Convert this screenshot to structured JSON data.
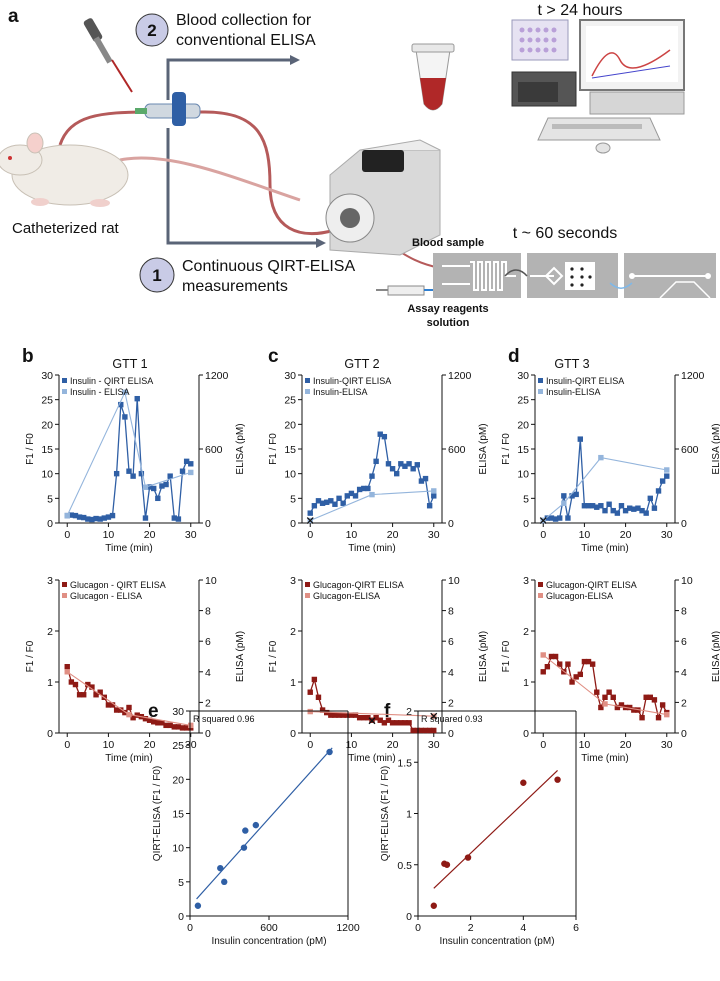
{
  "panel_a": {
    "label": "a",
    "step2_number": "2",
    "step2_text_line1": "Blood collection for",
    "step2_text_line2": "conventional ELISA",
    "step1_number": "1",
    "step1_text_line1": "Continuous QIRT-ELISA",
    "step1_text_line2": "measurements",
    "rat_label": "Catheterized rat",
    "time_slow": "t > 24 hours",
    "time_fast": "t ~ 60 seconds",
    "blood_sample": "Blood sample",
    "assay_line1": "Assay reagents",
    "assay_line2": "solution",
    "colors": {
      "step_circle": "#c9cbe6",
      "tube_red": "#b02828",
      "pump_gray": "#d9d9d9",
      "chip_bg": "#b3b3b3"
    }
  },
  "colors": {
    "insulin_qirt": "#2f5fa5",
    "insulin_elisa": "#94b5dc",
    "glucagon_qirt": "#8e1a15",
    "glucagon_elisa": "#e08f84"
  },
  "panel_labels": {
    "b": "b",
    "c": "c",
    "d": "d",
    "e": "e",
    "f": "f"
  },
  "chart_data": [
    {
      "id": "b_top",
      "type": "line",
      "title": "GTT 1",
      "xlabel": "Time (min)",
      "ylabel": "F1 / F0",
      "y2label": "ELISA (pM)",
      "xlim": [
        -2,
        32
      ],
      "ylim": [
        0,
        30
      ],
      "y2lim": [
        0,
        1200
      ],
      "xticks": [
        0,
        10,
        20,
        30
      ],
      "yticks": [
        0,
        5,
        10,
        15,
        20,
        25,
        30
      ],
      "y2ticks": [
        0,
        600,
        1200
      ],
      "series": [
        {
          "name": "Insulin - QIRT ELISA",
          "axis": "left",
          "color": "#2f5fa5",
          "x": [
            0,
            1,
            2,
            3,
            4,
            5,
            6,
            7,
            8,
            9,
            10,
            11,
            12,
            13,
            14,
            15,
            16,
            17,
            18,
            19,
            20,
            21,
            22,
            23,
            24,
            25,
            26,
            27,
            28,
            29,
            30
          ],
          "y": [
            1.5,
            1.6,
            1.5,
            1.2,
            1.1,
            0.8,
            0.7,
            0.9,
            0.8,
            1.0,
            1.2,
            1.5,
            10.0,
            24.0,
            21.5,
            10.5,
            9.5,
            25.2,
            10.0,
            1.0,
            7.3,
            7.0,
            5.0,
            7.5,
            7.8,
            9.5,
            1.0,
            0.8,
            10.5,
            12.5,
            12.0
          ]
        },
        {
          "name": "Insulin - ELISA",
          "axis": "right",
          "color": "#94b5dc",
          "x": [
            0,
            14,
            19,
            30
          ],
          "y": [
            60,
            1060,
            290,
            410
          ]
        }
      ]
    },
    {
      "id": "c_top",
      "type": "line",
      "title": "GTT 2",
      "xlabel": "Time (min)",
      "ylabel": "F1 / F0",
      "y2label": "ELISA (pM)",
      "xlim": [
        -2,
        32
      ],
      "ylim": [
        0,
        30
      ],
      "y2lim": [
        0,
        1200
      ],
      "xticks": [
        0,
        10,
        20,
        30
      ],
      "yticks": [
        0,
        5,
        10,
        15,
        20,
        25,
        30
      ],
      "y2ticks": [
        0,
        600,
        1200
      ],
      "series": [
        {
          "name": "Insulin-QIRT ELISA",
          "axis": "left",
          "color": "#2f5fa5",
          "x": [
            0,
            1,
            2,
            3,
            4,
            5,
            6,
            7,
            8,
            9,
            10,
            11,
            12,
            13,
            14,
            15,
            16,
            17,
            18,
            19,
            20,
            21,
            22,
            23,
            24,
            25,
            26,
            27,
            28,
            29,
            30
          ],
          "y": [
            2.0,
            3.5,
            4.5,
            4.0,
            4.2,
            4.5,
            3.8,
            5.0,
            4.0,
            5.5,
            6.0,
            5.5,
            6.8,
            7.0,
            7.0,
            9.5,
            12.5,
            18.0,
            17.5,
            12.0,
            11.0,
            10.0,
            12.0,
            11.5,
            12.0,
            11.0,
            11.8,
            8.5,
            9.0,
            3.5,
            5.5
          ]
        },
        {
          "name": "Insulin-ELISA",
          "axis": "right",
          "color": "#94b5dc",
          "x": [
            0,
            15,
            30
          ],
          "y": [
            20,
            230,
            260
          ]
        }
      ],
      "markers_x": [
        {
          "x": 0,
          "y2": 20
        }
      ]
    },
    {
      "id": "d_top",
      "type": "line",
      "title": "GTT 3",
      "xlabel": "Time (min)",
      "ylabel": "F1 / F0",
      "y2label": "ELISA (pM)",
      "xlim": [
        -2,
        32
      ],
      "ylim": [
        0,
        30
      ],
      "y2lim": [
        0,
        1200
      ],
      "xticks": [
        0,
        10,
        20,
        30
      ],
      "yticks": [
        0,
        5,
        10,
        15,
        20,
        25,
        30
      ],
      "y2ticks": [
        0,
        600,
        1200
      ],
      "series": [
        {
          "name": "Insulin-QIRT ELISA",
          "axis": "left",
          "color": "#2f5fa5",
          "x": [
            0,
            1,
            2,
            3,
            4,
            5,
            6,
            7,
            8,
            9,
            10,
            11,
            12,
            13,
            14,
            15,
            16,
            17,
            18,
            19,
            20,
            21,
            22,
            23,
            24,
            25,
            26,
            27,
            28,
            29,
            30
          ],
          "y": [
            0.5,
            1.0,
            1.0,
            0.8,
            1.0,
            5.5,
            1.0,
            5.5,
            5.8,
            17.0,
            3.5,
            3.5,
            3.5,
            3.2,
            3.5,
            2.5,
            3.8,
            2.5,
            2.0,
            3.5,
            2.5,
            3.0,
            2.8,
            3.0,
            2.5,
            2.0,
            5.0,
            3.0,
            6.5,
            8.5,
            9.5
          ]
        },
        {
          "name": "Insulin-ELISA",
          "axis": "right",
          "color": "#94b5dc",
          "x": [
            0,
            5,
            14,
            30
          ],
          "y": [
            20,
            160,
            530,
            430
          ]
        }
      ],
      "markers_x": [
        {
          "x": 0,
          "y2": 20
        }
      ]
    },
    {
      "id": "b_bottom",
      "type": "line",
      "title": "",
      "xlabel": "Time (min)",
      "ylabel": "F1 / F0",
      "y2label": "ELISA (pM)",
      "xlim": [
        -2,
        32
      ],
      "ylim": [
        0,
        3
      ],
      "y2lim": [
        0,
        10
      ],
      "xticks": [
        0,
        10,
        20,
        30
      ],
      "yticks": [
        0,
        1,
        2,
        3
      ],
      "y2ticks": [
        0,
        2,
        4,
        6,
        8,
        10
      ],
      "series": [
        {
          "name": "Glucagon - QIRT ELISA",
          "axis": "left",
          "color": "#8e1a15",
          "x": [
            0,
            1,
            2,
            3,
            4,
            5,
            6,
            7,
            8,
            9,
            10,
            11,
            12,
            13,
            14,
            15,
            16,
            17,
            18,
            19,
            20,
            21,
            22,
            23,
            24,
            25,
            26,
            27,
            28,
            29,
            30
          ],
          "y": [
            1.3,
            1.0,
            0.95,
            0.75,
            0.75,
            0.95,
            0.9,
            0.75,
            0.8,
            0.7,
            0.55,
            0.55,
            0.45,
            0.45,
            0.4,
            0.5,
            0.3,
            0.35,
            0.32,
            0.28,
            0.25,
            0.22,
            0.2,
            0.2,
            0.15,
            0.15,
            0.12,
            0.12,
            0.1,
            0.1,
            0.1
          ]
        },
        {
          "name": "Glucagon - ELISA",
          "axis": "right",
          "color": "#e08f84",
          "x": [
            0,
            15,
            30
          ],
          "y": [
            4.0,
            1.2,
            0.5
          ]
        }
      ]
    },
    {
      "id": "c_bottom",
      "type": "line",
      "title": "",
      "xlabel": "Time (min)",
      "ylabel": "F1 / F0",
      "y2label": "ELISA (pM)",
      "xlim": [
        -2,
        32
      ],
      "ylim": [
        0,
        3
      ],
      "y2lim": [
        0,
        10
      ],
      "xticks": [
        0,
        10,
        20,
        30
      ],
      "yticks": [
        0,
        1,
        2,
        3
      ],
      "y2ticks": [
        0,
        2,
        4,
        6,
        8,
        10
      ],
      "series": [
        {
          "name": "Glucagon-QIRT ELISA",
          "axis": "left",
          "color": "#8e1a15",
          "x": [
            0,
            1,
            2,
            3,
            4,
            5,
            6,
            7,
            8,
            9,
            10,
            11,
            12,
            13,
            14,
            15,
            16,
            17,
            18,
            19,
            20,
            21,
            22,
            23,
            24,
            25,
            26,
            27,
            28,
            29,
            30
          ],
          "y": [
            0.8,
            1.05,
            0.7,
            0.45,
            0.4,
            0.35,
            0.35,
            0.35,
            0.35,
            0.35,
            0.35,
            0.35,
            0.3,
            0.3,
            0.3,
            0.25,
            0.3,
            0.25,
            0.2,
            0.25,
            0.2,
            0.2,
            0.2,
            0.2,
            0.2,
            0.05,
            0.05,
            0.05,
            0.05,
            0.05,
            0.05
          ]
        },
        {
          "name": "Glucagon-ELISA",
          "axis": "right",
          "color": "#e08f84",
          "x": [
            0,
            30
          ],
          "y": [
            1.4,
            1.1
          ]
        }
      ],
      "markers_x": [
        {
          "x": 15,
          "y2": 0.8
        },
        {
          "x": 30,
          "y2": 1.1
        }
      ]
    },
    {
      "id": "d_bottom",
      "type": "line",
      "title": "",
      "xlabel": "Time (min)",
      "ylabel": "F1 / F0",
      "y2label": "ELISA (pM)",
      "xlim": [
        -2,
        32
      ],
      "ylim": [
        0,
        3
      ],
      "y2lim": [
        0,
        10
      ],
      "xticks": [
        0,
        10,
        20,
        30
      ],
      "yticks": [
        0,
        1,
        2,
        3
      ],
      "y2ticks": [
        0,
        2,
        4,
        6,
        8,
        10
      ],
      "series": [
        {
          "name": "Glucagon-QIRT ELISA",
          "axis": "left",
          "color": "#8e1a15",
          "x": [
            0,
            1,
            2,
            3,
            4,
            5,
            6,
            7,
            8,
            9,
            10,
            11,
            12,
            13,
            14,
            15,
            16,
            17,
            18,
            19,
            20,
            21,
            22,
            23,
            24,
            25,
            26,
            27,
            28,
            29,
            30
          ],
          "y": [
            1.2,
            1.3,
            1.5,
            1.5,
            1.35,
            1.2,
            1.35,
            1.0,
            1.1,
            1.15,
            1.4,
            1.4,
            1.35,
            0.8,
            0.5,
            0.7,
            0.8,
            0.7,
            0.5,
            0.55,
            0.5,
            0.5,
            0.45,
            0.45,
            0.3,
            0.7,
            0.7,
            0.65,
            0.3,
            0.55,
            0.4
          ]
        },
        {
          "name": "Glucagon-ELISA",
          "axis": "right",
          "color": "#e08f84",
          "x": [
            0,
            15,
            30
          ],
          "y": [
            5.1,
            1.9,
            1.2
          ]
        }
      ]
    },
    {
      "id": "e",
      "type": "scatter",
      "title": "R squared 0.96",
      "xlabel": "Insulin concentration (pM)",
      "ylabel": "QIRT-ELISA (F1 / F0)",
      "xlim": [
        0,
        1200
      ],
      "ylim": [
        0,
        30
      ],
      "xticks": [
        0,
        600,
        1200
      ],
      "yticks": [
        0,
        5,
        10,
        15,
        20,
        25,
        30
      ],
      "color": "#2f5fa5",
      "points": {
        "x": [
          60,
          230,
          260,
          410,
          420,
          500,
          1060
        ],
        "y": [
          1.5,
          7.0,
          5.0,
          10.0,
          12.5,
          13.3,
          24.0
        ]
      },
      "fit": {
        "x": [
          50,
          1080
        ],
        "y": [
          2.5,
          24.6
        ]
      }
    },
    {
      "id": "f",
      "type": "scatter",
      "title": "R squared 0.93",
      "xlabel": "Insulin concentration (pM)",
      "ylabel": "QIRT-ELISA (F1 / F0)",
      "xlim": [
        0,
        6
      ],
      "ylim": [
        0,
        2.0
      ],
      "xticks": [
        0,
        2,
        4,
        6
      ],
      "yticks": [
        0,
        0.5,
        1.0,
        1.5,
        2.0
      ],
      "color": "#8e1a15",
      "points": {
        "x": [
          0.6,
          1.0,
          1.1,
          1.9,
          4.0,
          5.3
        ],
        "y": [
          0.1,
          0.51,
          0.5,
          0.57,
          1.3,
          1.33
        ]
      },
      "fit": {
        "x": [
          0.6,
          5.3
        ],
        "y": [
          0.27,
          1.42
        ]
      }
    }
  ]
}
